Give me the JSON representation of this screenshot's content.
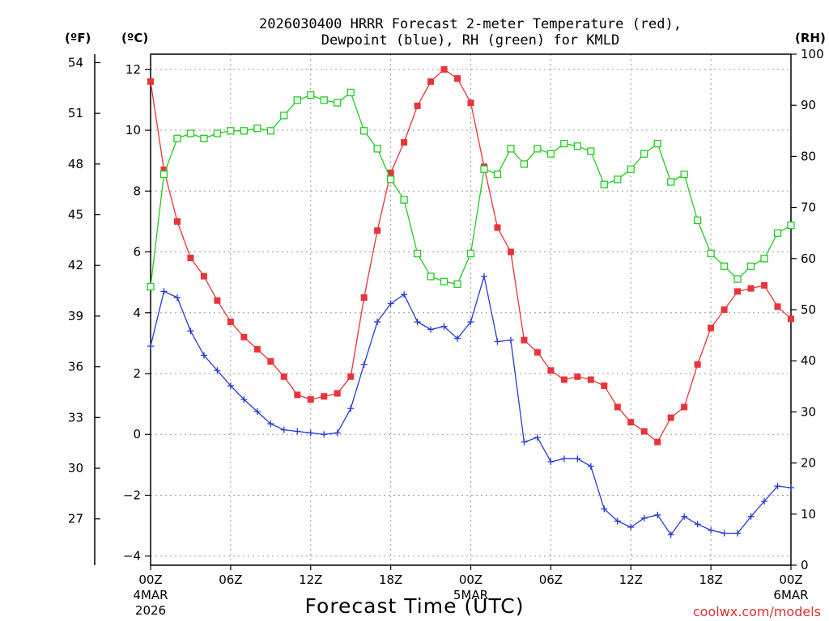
{
  "colors": {
    "temperature": "#e8343a",
    "dewpoint": "#2a3ad8",
    "rh": "#22cc22",
    "credit": "#e03030"
  },
  "chart_data": {
    "type": "line",
    "title_line1": "2026030400 HRRR Forecast 2-meter Temperature (red),",
    "title_line2": "Dewpoint (blue), RH (green) for KMLD",
    "xlabel": "Forecast Time (UTC)",
    "credit": "coolwx.com/models",
    "units": {
      "fahrenheit": "(ºF)",
      "celsius": "(ºC)",
      "rh": "(RH)"
    },
    "x_range": [
      0,
      48
    ],
    "x_ticks": [
      {
        "x": 0,
        "label": "00Z",
        "sub1": "4MAR",
        "sub2": "2026"
      },
      {
        "x": 6,
        "label": "06Z"
      },
      {
        "x": 12,
        "label": "12Z"
      },
      {
        "x": 18,
        "label": "18Z"
      },
      {
        "x": 24,
        "label": "00Z",
        "sub1": "5MAR"
      },
      {
        "x": 30,
        "label": "06Z"
      },
      {
        "x": 36,
        "label": "12Z"
      },
      {
        "x": 42,
        "label": "18Z"
      },
      {
        "x": 48,
        "label": "00Z",
        "sub1": "6MAR"
      }
    ],
    "y_celsius": {
      "range": [
        -4.3,
        12.5
      ],
      "ticks": [
        -4,
        -2,
        0,
        2,
        4,
        6,
        8,
        10,
        12
      ],
      "tick_labels": [
        "−4",
        "−2",
        "0",
        "2",
        "4",
        "6",
        "8",
        "10",
        "12"
      ]
    },
    "y_fahrenheit": {
      "ticks": [
        27,
        30,
        33,
        36,
        39,
        42,
        45,
        48,
        51,
        54
      ]
    },
    "y_rh": {
      "range": [
        0,
        100
      ],
      "ticks": [
        0,
        10,
        20,
        30,
        40,
        50,
        60,
        70,
        80,
        90,
        100
      ]
    },
    "series": [
      {
        "name": "2-meter Temperature",
        "axis": "celsius",
        "marker": "filled-square",
        "values": [
          11.6,
          8.7,
          7.0,
          5.8,
          5.2,
          4.4,
          3.7,
          3.2,
          2.8,
          2.4,
          1.9,
          1.3,
          1.15,
          1.25,
          1.35,
          1.9,
          4.5,
          6.7,
          8.6,
          9.6,
          10.8,
          11.6,
          12.0,
          11.7,
          10.9,
          8.8,
          6.8,
          6.0,
          3.1,
          2.7,
          2.1,
          1.8,
          1.9,
          1.8,
          1.6,
          0.9,
          0.4,
          0.1,
          -0.25,
          0.55,
          0.9,
          2.3,
          3.5,
          4.1,
          4.7,
          4.8,
          4.9,
          4.2,
          3.8
        ]
      },
      {
        "name": "Dewpoint",
        "axis": "celsius",
        "marker": "plus",
        "values": [
          2.9,
          4.7,
          4.5,
          3.4,
          2.6,
          2.1,
          1.6,
          1.15,
          0.75,
          0.35,
          0.15,
          0.1,
          0.05,
          0.0,
          0.05,
          0.85,
          2.3,
          3.7,
          4.3,
          4.6,
          3.7,
          3.45,
          3.55,
          3.15,
          3.7,
          5.2,
          3.05,
          3.1,
          -0.25,
          -0.1,
          -0.9,
          -0.8,
          -0.8,
          -1.05,
          -2.45,
          -2.85,
          -3.05,
          -2.75,
          -2.65,
          -3.3,
          -2.7,
          -2.95,
          -3.15,
          -3.25,
          -3.25,
          -2.7,
          -2.2,
          -1.7,
          -1.75
        ]
      },
      {
        "name": "RH",
        "axis": "rh",
        "marker": "open-square",
        "values": [
          54.5,
          76.5,
          83.5,
          84.5,
          83.5,
          84.5,
          85.0,
          85.0,
          85.5,
          85.0,
          88.0,
          91.0,
          92.0,
          91.0,
          90.5,
          92.5,
          85.0,
          81.5,
          75.5,
          71.5,
          61.0,
          56.5,
          55.5,
          55.0,
          61.0,
          77.5,
          76.5,
          81.5,
          78.5,
          81.5,
          80.5,
          82.5,
          82.0,
          81.0,
          74.5,
          75.5,
          77.5,
          80.5,
          82.5,
          75.0,
          76.5,
          67.5,
          61.0,
          58.5,
          56.0,
          58.5,
          60.0,
          65.0,
          66.5
        ]
      }
    ]
  }
}
